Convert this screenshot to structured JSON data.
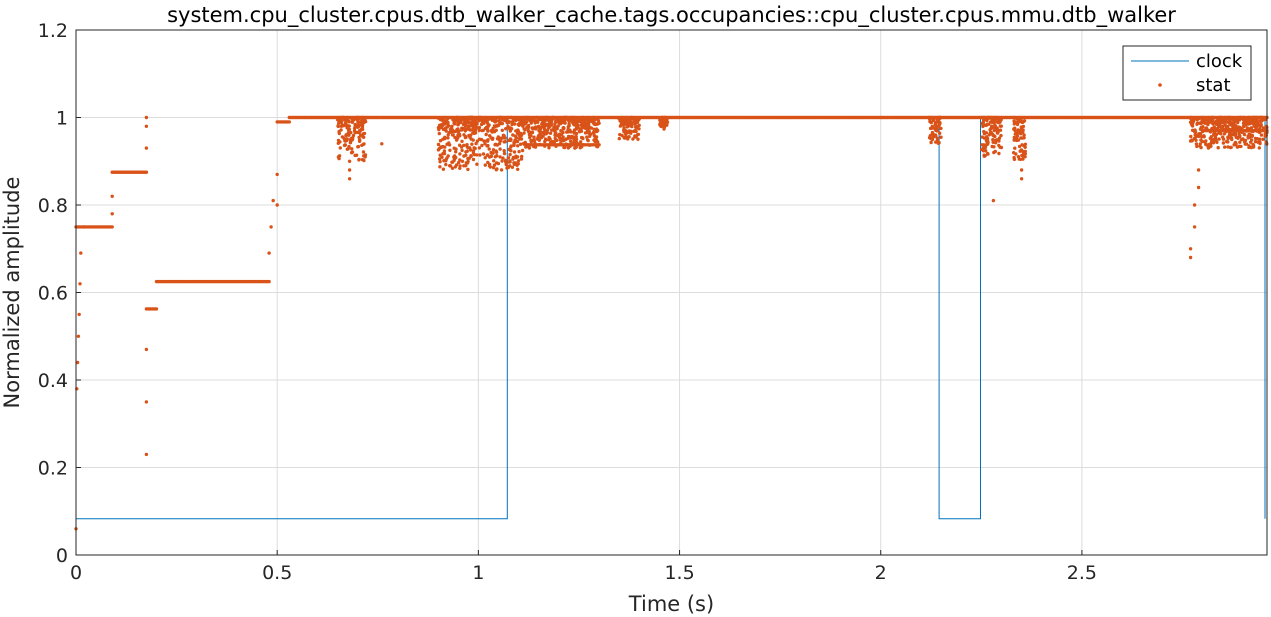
{
  "chart_data": {
    "type": "line",
    "title": "system.cpu_cluster.cpus.dtb_walker_cache.tags.occupancies::cpu_cluster.cpus.mmu.dtb_walker",
    "xlabel": "Time (s)",
    "ylabel": "Normalized amplitude",
    "xlim": [
      0,
      2.96
    ],
    "ylim": [
      0,
      1.2
    ],
    "xticks": [
      0,
      0.5,
      1,
      1.5,
      2,
      2.5
    ],
    "xtick_labels": [
      "0",
      "0.5",
      "1",
      "1.5",
      "2",
      "2.5"
    ],
    "yticks": [
      0,
      0.2,
      0.4,
      0.6,
      0.8,
      1,
      1.2
    ],
    "ytick_labels": [
      "0",
      "0.2",
      "0.4",
      "0.6",
      "0.8",
      "1",
      "1.2"
    ],
    "grid": true,
    "legend_position": "top-right",
    "series": [
      {
        "name": "clock",
        "style": "step-line",
        "color": "#0072BD",
        "points": [
          [
            0,
            0.083
          ],
          [
            1.072,
            0.083
          ],
          [
            1.072,
            1.0
          ],
          [
            2.145,
            1.0
          ],
          [
            2.145,
            0.083
          ],
          [
            2.248,
            0.083
          ],
          [
            2.248,
            1.0
          ],
          [
            2.955,
            1.0
          ],
          [
            2.955,
            0.083
          ]
        ]
      },
      {
        "name": "stat",
        "style": "dots",
        "color": "#D95319",
        "segments": [
          [
            0.0,
            0.02,
            0.75
          ],
          [
            0.02,
            0.09,
            0.75
          ],
          [
            0.09,
            0.175,
            0.875
          ],
          [
            0.175,
            0.2,
            0.5625
          ],
          [
            0.2,
            0.48,
            0.625
          ],
          [
            0.5,
            0.53,
            0.99
          ],
          [
            0.53,
            2.77,
            1.0
          ],
          [
            2.77,
            2.96,
            1.0
          ],
          [
            1.12,
            1.3,
            0.9375
          ],
          [
            2.8,
            2.96,
            0.97
          ]
        ],
        "outliers": [
          [
            0.0,
            0.06
          ],
          [
            0.002,
            0.38
          ],
          [
            0.004,
            0.44
          ],
          [
            0.006,
            0.5
          ],
          [
            0.008,
            0.55
          ],
          [
            0.01,
            0.62
          ],
          [
            0.012,
            0.69
          ],
          [
            0.09,
            0.78
          ],
          [
            0.09,
            0.82
          ],
          [
            0.175,
            0.23
          ],
          [
            0.175,
            0.35
          ],
          [
            0.175,
            0.47
          ],
          [
            0.175,
            0.93
          ],
          [
            0.175,
            0.98
          ],
          [
            0.175,
            1.0
          ],
          [
            0.48,
            0.69
          ],
          [
            0.485,
            0.75
          ],
          [
            0.49,
            0.81
          ],
          [
            0.5,
            0.8
          ],
          [
            0.5,
            0.87
          ],
          [
            0.68,
            0.86
          ],
          [
            0.68,
            0.88
          ],
          [
            0.68,
            0.9
          ],
          [
            0.76,
            0.94
          ],
          [
            2.28,
            0.81
          ],
          [
            2.35,
            0.86
          ],
          [
            2.35,
            0.88
          ],
          [
            2.77,
            0.68
          ],
          [
            2.77,
            0.7
          ],
          [
            2.78,
            0.75
          ],
          [
            2.78,
            0.8
          ],
          [
            2.79,
            0.84
          ],
          [
            2.79,
            0.88
          ]
        ],
        "clusters": [
          [
            0.65,
            0.72,
            0.9,
            1.0
          ],
          [
            0.9,
            1.11,
            0.88,
            1.0
          ],
          [
            1.11,
            1.3,
            0.93,
            1.0
          ],
          [
            1.35,
            1.4,
            0.95,
            1.0
          ],
          [
            1.45,
            1.47,
            0.97,
            1.0
          ],
          [
            2.12,
            2.15,
            0.94,
            1.0
          ],
          [
            2.25,
            2.3,
            0.91,
            1.0
          ],
          [
            2.33,
            2.36,
            0.9,
            1.0
          ],
          [
            2.77,
            2.96,
            0.93,
            1.0
          ]
        ]
      }
    ]
  }
}
